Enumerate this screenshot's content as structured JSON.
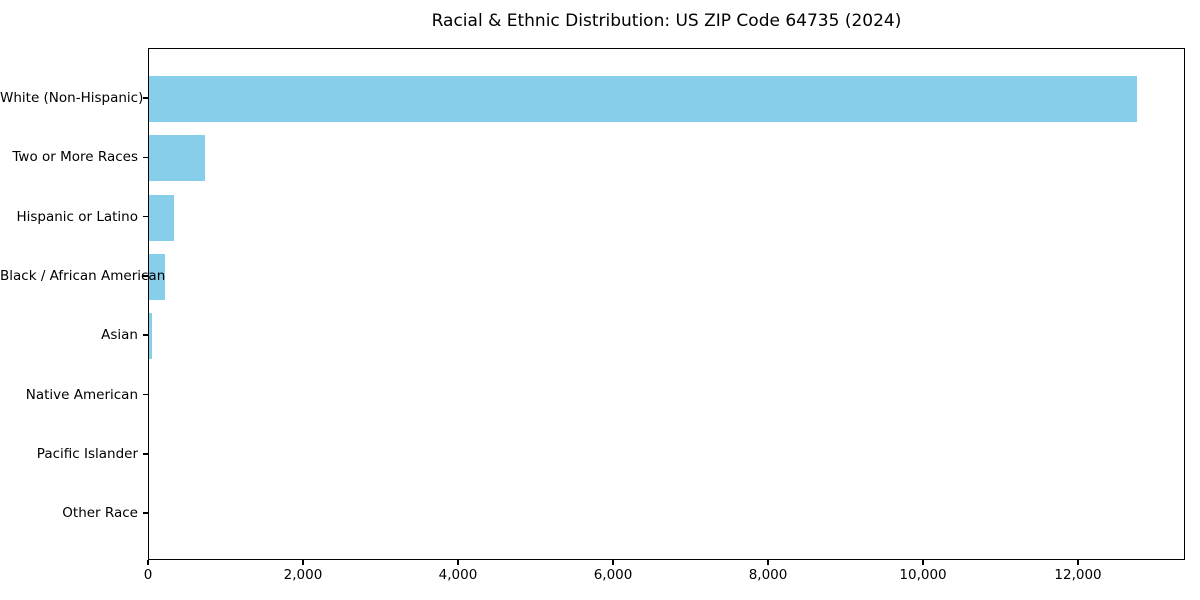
{
  "figure": {
    "title": "Racial & Ethnic Distribution: US ZIP Code 64735 (2024)",
    "background": "#ffffff",
    "text_color": "#000000",
    "frame_color": "#000000"
  },
  "chart_data": {
    "type": "bar",
    "orientation": "horizontal",
    "title": "Racial & Ethnic Distribution: US ZIP Code 64735 (2024)",
    "categories": [
      "White (Non-Hispanic)",
      "Two or More Races",
      "Hispanic or Latino",
      "Black / African American",
      "Asian",
      "Native American",
      "Pacific Islander",
      "Other Race"
    ],
    "values": [
      12748,
      723,
      323,
      206,
      40,
      0,
      0,
      0
    ],
    "bar_color": "#87CEEB",
    "xlabel": "",
    "ylabel": "",
    "xlim": [
      0,
      13380
    ],
    "x_ticks": [
      0,
      2000,
      4000,
      6000,
      8000,
      10000,
      12000
    ],
    "x_tick_labels": [
      "0",
      "2,000",
      "4,000",
      "6,000",
      "8,000",
      "10,000",
      "12,000"
    ],
    "grid": false,
    "legend": "none",
    "category_axis_side": "left",
    "value_axis_side": "bottom"
  }
}
